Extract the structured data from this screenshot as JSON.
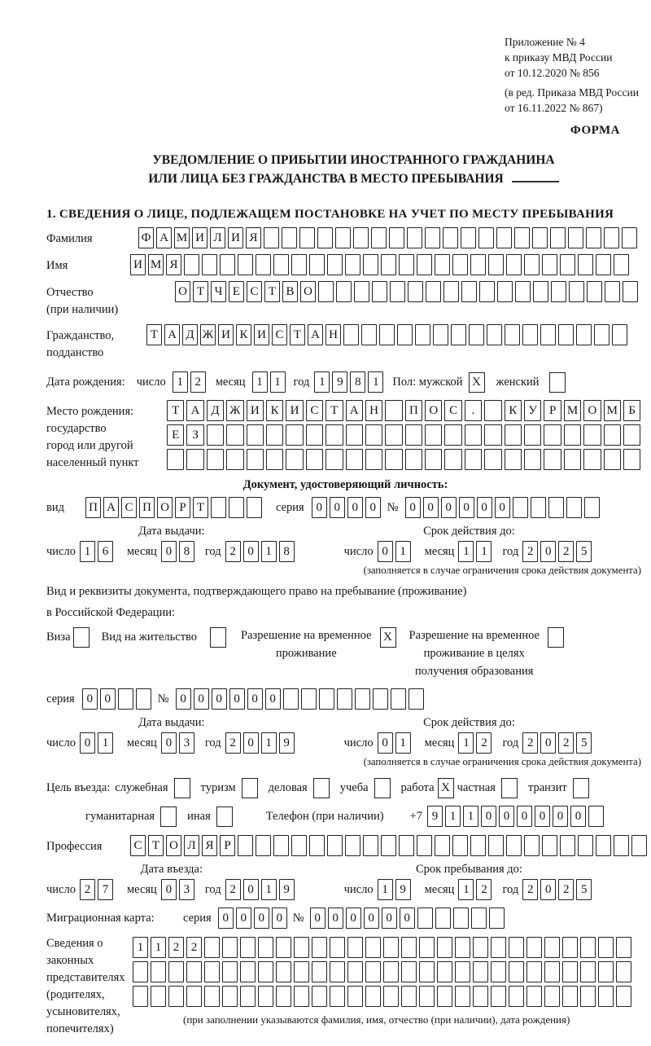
{
  "header": {
    "appendix_lines": [
      "Приложение № 4",
      "к приказу МВД России",
      "от 10.12.2020 № 856"
    ],
    "amendment_lines": [
      "(в ред. Приказа МВД России",
      "от 16.11.2022 № 867)"
    ],
    "form_label": "ФОРМА"
  },
  "title": {
    "line1": "УВЕДОМЛЕНИЕ О ПРИБЫТИИ ИНОСТРАННОГО ГРАЖДАНИНА",
    "line2": "ИЛИ ЛИЦА БЕЗ ГРАЖДАНСТВА В МЕСТО ПРЕБЫВАНИЯ"
  },
  "section1_heading": "1. СВЕДЕНИЯ О ЛИЦЕ, ПОДЛЕЖАЩЕМ ПОСТАНОВКЕ НА УЧЕТ ПО МЕСТУ ПРЕБЫВАНИЯ",
  "surname": {
    "label": "Фамилия",
    "cells": {
      "text": "ФАМИЛИЯ",
      "count": 28
    }
  },
  "given_name": {
    "label": "Имя",
    "cells": {
      "text": "ИМЯ",
      "count": 28
    }
  },
  "patronymic": {
    "label": "Отчество",
    "label2": "(при наличии)",
    "cells": {
      "text": "ОТЧЕСТВО",
      "count": 26
    }
  },
  "citizenship": {
    "label": "Гражданство,",
    "label2": "подданство",
    "cells": {
      "text": "ТАДЖИКИСТАН",
      "count": 27
    }
  },
  "birth_date": {
    "label": "Дата рождения:",
    "day_label": "число",
    "day": {
      "text": "12",
      "count": 2
    },
    "month_label": "месяц",
    "month": {
      "text": "11",
      "count": 2
    },
    "year_label": "год",
    "year": {
      "text": "1981",
      "count": 4
    },
    "sex_label": "Пол: мужской",
    "male_checked": true,
    "female_label": "женский",
    "female_checked": false
  },
  "birth_place": {
    "label": "Место рождения:",
    "sub1": "государство",
    "sub2": "город или другой",
    "sub3": "населенный пункт",
    "row1": {
      "text": "ТАДЖИКИСТАН ПОС. КУРМОМБ",
      "count": 24
    },
    "row2": {
      "text": "ЕЗ",
      "count": 24
    },
    "row3": {
      "text": "",
      "count": 24
    }
  },
  "identity_doc": {
    "heading": "Документ, удостоверяющий личность:",
    "kind_label": "вид",
    "kind": {
      "text": "ПАСПОРТ",
      "count": 10
    },
    "series_label": "серия",
    "series": {
      "text": "0000",
      "count": 4
    },
    "number_label": "№",
    "number": {
      "text": "000000",
      "count": 11
    },
    "issue_title": "Дата выдачи:",
    "issue_day_label": "число",
    "issue_day": {
      "text": "16",
      "count": 2
    },
    "issue_month_label": "месяц",
    "issue_month": {
      "text": "08",
      "count": 2
    },
    "issue_year_label": "год",
    "issue_year": {
      "text": "2018",
      "count": 4
    },
    "expiry_title": "Срок действия до:",
    "expiry_day_label": "число",
    "expiry_day": {
      "text": "01",
      "count": 2
    },
    "expiry_month_label": "месяц",
    "expiry_month": {
      "text": "11",
      "count": 2
    },
    "expiry_year_label": "год",
    "expiry_year": {
      "text": "2025",
      "count": 4
    },
    "note": "(заполняется в случае ограничения срока действия документа)"
  },
  "residence_doc": {
    "line1": "Вид и реквизиты документа, подтверждающего право на пребывание (проживание)",
    "line2": "в Российской Федерации:",
    "visa_label": "Виза",
    "visa_checked": false,
    "permit_label": "Вид на жительство",
    "permit_checked": false,
    "temp_line1": "Разрешение на временное",
    "temp_line2": "проживание",
    "temp_checked": true,
    "edu_line1": "Разрешение на временное",
    "edu_line2": "проживание в целях",
    "edu_line3": "получения образования",
    "edu_checked": false,
    "series_label": "серия",
    "series": {
      "text": "00",
      "count": 4
    },
    "number_label": "№",
    "number": {
      "text": "000000",
      "count": 14
    },
    "issue_title": "Дата выдачи:",
    "issue_day_label": "число",
    "issue_day": {
      "text": "01",
      "count": 2
    },
    "issue_month_label": "месяц",
    "issue_month": {
      "text": "03",
      "count": 2
    },
    "issue_year_label": "год",
    "issue_year": {
      "text": "2019",
      "count": 4
    },
    "expiry_title": "Срок действия до:",
    "expiry_day_label": "число",
    "expiry_day": {
      "text": "01",
      "count": 2
    },
    "expiry_month_label": "месяц",
    "expiry_month": {
      "text": "12",
      "count": 2
    },
    "expiry_year_label": "год",
    "expiry_year": {
      "text": "2025",
      "count": 4
    },
    "note": "(заполняется в случае ограничения срока действия документа)"
  },
  "entry_purpose": {
    "prefix": "Цель въезда:",
    "options": [
      {
        "label": "служебная",
        "checked": false
      },
      {
        "label": "туризм",
        "checked": false
      },
      {
        "label": "деловая",
        "checked": false
      },
      {
        "label": "учеба",
        "checked": false
      },
      {
        "label": "работа",
        "checked": true
      },
      {
        "label": "частная",
        "checked": false
      },
      {
        "label": "транзит",
        "checked": false
      },
      {
        "label": "гуманитарная",
        "checked": false
      },
      {
        "label": "иная",
        "checked": false
      }
    ]
  },
  "phone": {
    "label": "Телефон (при наличии)",
    "prefix": "+7",
    "cells": {
      "text": "911000000",
      "count": 10
    }
  },
  "profession": {
    "label": "Профессия",
    "cells": {
      "text": "СТОЛЯР",
      "count": 29
    }
  },
  "entry_date": {
    "entry_title": "Дата въезда:",
    "entry_day_label": "число",
    "entry_day": {
      "text": "27",
      "count": 2
    },
    "entry_month_label": "месяц",
    "entry_month": {
      "text": "03",
      "count": 2
    },
    "entry_year_label": "год",
    "entry_year": {
      "text": "2019",
      "count": 4
    },
    "stay_title": "Срок пребывания до:",
    "stay_day_label": "число",
    "stay_day": {
      "text": "19",
      "count": 2
    },
    "stay_month_label": "месяц",
    "stay_month": {
      "text": "12",
      "count": 2
    },
    "stay_year_label": "год",
    "stay_year": {
      "text": "2025",
      "count": 4
    }
  },
  "migration_card": {
    "label": "Миграционная карта:",
    "series_label": "серия",
    "series": {
      "text": "0000",
      "count": 4
    },
    "number_label": "№",
    "number": {
      "text": "000000",
      "count": 11
    }
  },
  "legal_reps": {
    "label_lines": [
      "Сведения о",
      "законных",
      "представителях",
      "(родителях,",
      "усыновителях,",
      "попечителях)"
    ],
    "row1": {
      "text": "1122",
      "count": 28
    },
    "row2": {
      "text": "",
      "count": 28
    },
    "row3": {
      "text": "",
      "count": 28
    },
    "note": "(при заполнении указываются фамилия, имя, отчество (при наличии), дата рождения)"
  }
}
